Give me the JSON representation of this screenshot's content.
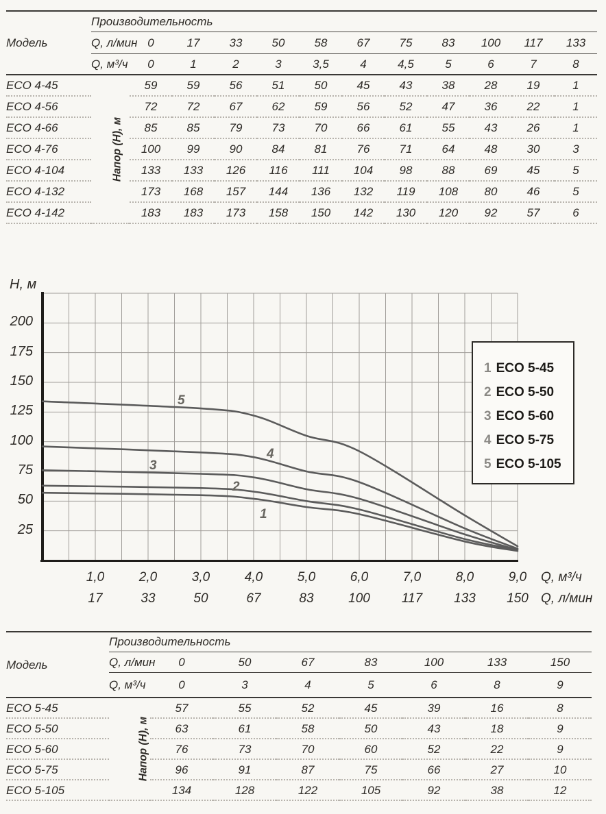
{
  "colors": {
    "background": "#f8f7f3",
    "curve": "#5b5b5b",
    "grid": "#a09d99",
    "axis": "#1f1d1a",
    "text": "#2d2a26",
    "legend_number": "#8a8884",
    "rule_thick": "#3a3835",
    "rule_thin": "#474440",
    "dotted_rule": "#b7b3ac"
  },
  "table_eco4": {
    "model_header": "Модель",
    "perf_header": "Производительность",
    "q_lmin_label": "Q, л/мин",
    "q_m3h_label": "Q, м³/ч",
    "napor_label": "Напор (Н), м",
    "lmin": [
      "0",
      "17",
      "33",
      "50",
      "58",
      "67",
      "75",
      "83",
      "100",
      "117",
      "133"
    ],
    "m3h": [
      "0",
      "1",
      "2",
      "3",
      "3,5",
      "4",
      "4,5",
      "5",
      "6",
      "7",
      "8"
    ],
    "rows": [
      {
        "model": "ECO 4-45",
        "values": [
          "59",
          "59",
          "56",
          "51",
          "50",
          "45",
          "43",
          "38",
          "28",
          "19",
          "1"
        ]
      },
      {
        "model": "ECO 4-56",
        "values": [
          "72",
          "72",
          "67",
          "62",
          "59",
          "56",
          "52",
          "47",
          "36",
          "22",
          "1"
        ]
      },
      {
        "model": "ECO 4-66",
        "values": [
          "85",
          "85",
          "79",
          "73",
          "70",
          "66",
          "61",
          "55",
          "43",
          "26",
          "1"
        ]
      },
      {
        "model": "ECO 4-76",
        "values": [
          "100",
          "99",
          "90",
          "84",
          "81",
          "76",
          "71",
          "64",
          "48",
          "30",
          "3"
        ]
      },
      {
        "model": "ECO 4-104",
        "values": [
          "133",
          "133",
          "126",
          "116",
          "111",
          "104",
          "98",
          "88",
          "69",
          "45",
          "5"
        ]
      },
      {
        "model": "ECO 4-132",
        "values": [
          "173",
          "168",
          "157",
          "144",
          "136",
          "132",
          "119",
          "108",
          "80",
          "46",
          "5"
        ]
      },
      {
        "model": "ECO 4-142",
        "values": [
          "183",
          "183",
          "173",
          "158",
          "150",
          "142",
          "130",
          "120",
          "92",
          "57",
          "6"
        ]
      }
    ]
  },
  "chart_data": {
    "type": "line",
    "ylabel": "H, м",
    "xlabel_primary": "Q, м³/ч",
    "xlabel_secondary": "Q, л/мин",
    "xlim": [
      0,
      9
    ],
    "ylim": [
      0,
      225
    ],
    "grid": true,
    "y_ticks": [
      200,
      175,
      150,
      125,
      100,
      75,
      50,
      25
    ],
    "x_ticks_m3h": [
      "1,0",
      "2,0",
      "3,0",
      "4,0",
      "5,0",
      "6,0",
      "7,0",
      "8,0",
      "9,0"
    ],
    "x_ticks_lmin": [
      "17",
      "33",
      "50",
      "67",
      "83",
      "100",
      "117",
      "133",
      "150"
    ],
    "x": [
      0,
      3,
      4,
      5,
      6,
      8,
      9
    ],
    "series": [
      {
        "curve_number": "1",
        "name": "ECO 5-45",
        "values": [
          57,
          55,
          52,
          45,
          39,
          16,
          8
        ],
        "label_pos": {
          "q": 4.2,
          "h": 38
        }
      },
      {
        "curve_number": "2",
        "name": "ECO 5-50",
        "values": [
          63,
          61,
          58,
          50,
          43,
          18,
          9
        ],
        "label_pos": {
          "q": 3.67,
          "h": 61
        }
      },
      {
        "curve_number": "3",
        "name": "ECO 5-60",
        "values": [
          76,
          73,
          70,
          60,
          52,
          22,
          9
        ],
        "label_pos": {
          "q": 2.1,
          "h": 79
        }
      },
      {
        "curve_number": "4",
        "name": "ECO 5-75",
        "values": [
          96,
          91,
          87,
          75,
          66,
          27,
          10
        ],
        "label_pos": {
          "q": 4.32,
          "h": 89
        }
      },
      {
        "curve_number": "5",
        "name": "ECO 5-105",
        "values": [
          134,
          128,
          122,
          105,
          92,
          38,
          12
        ],
        "label_pos": {
          "q": 2.64,
          "h": 134
        }
      }
    ],
    "legend": [
      {
        "num": "1",
        "label": "ECO 5-45"
      },
      {
        "num": "2",
        "label": "ECO 5-50"
      },
      {
        "num": "3",
        "label": "ECO 5-60"
      },
      {
        "num": "4",
        "label": "ECO 5-75"
      },
      {
        "num": "5",
        "label": "ECO 5-105"
      }
    ],
    "legend_position": "right"
  },
  "table_eco5": {
    "model_header": "Модель",
    "perf_header": "Производительность",
    "q_lmin_label": "Q, л/мин",
    "q_m3h_label": "Q, м³/ч",
    "napor_label": "Напор (Н), м",
    "lmin": [
      "0",
      "50",
      "67",
      "83",
      "100",
      "133",
      "150"
    ],
    "m3h": [
      "0",
      "3",
      "4",
      "5",
      "6",
      "8",
      "9"
    ],
    "rows": [
      {
        "model": "ECO 5-45",
        "values": [
          "57",
          "55",
          "52",
          "45",
          "39",
          "16",
          "8"
        ]
      },
      {
        "model": "ECO 5-50",
        "values": [
          "63",
          "61",
          "58",
          "50",
          "43",
          "18",
          "9"
        ]
      },
      {
        "model": "ECO 5-60",
        "values": [
          "76",
          "73",
          "70",
          "60",
          "52",
          "22",
          "9"
        ]
      },
      {
        "model": "ECO 5-75",
        "values": [
          "96",
          "91",
          "87",
          "75",
          "66",
          "27",
          "10"
        ]
      },
      {
        "model": "ECO 5-105",
        "values": [
          "134",
          "128",
          "122",
          "105",
          "92",
          "38",
          "12"
        ]
      }
    ]
  }
}
